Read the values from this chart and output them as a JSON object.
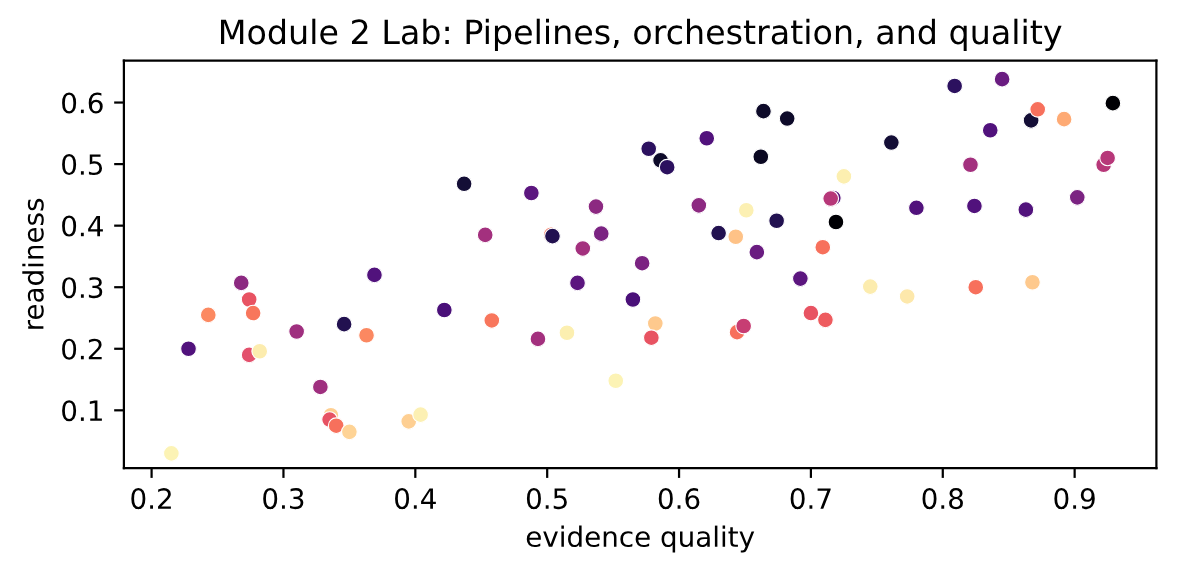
{
  "chart_data": {
    "type": "scatter",
    "title": "Module 2 Lab: Pipelines, orchestration, and quality",
    "xlabel": "evidence quality",
    "ylabel": "readiness",
    "xlim": [
      0.179,
      0.962
    ],
    "ylim": [
      0.006,
      0.668
    ],
    "xticks": [
      0.2,
      0.3,
      0.4,
      0.5,
      0.6,
      0.7,
      0.8,
      0.9
    ],
    "yticks": [
      0.1,
      0.2,
      0.3,
      0.4,
      0.5,
      0.6
    ],
    "grid": false,
    "marker": "circle",
    "x": [
      0.215,
      0.228,
      0.243,
      0.268,
      0.274,
      0.277,
      0.274,
      0.282,
      0.31,
      0.328,
      0.336,
      0.335,
      0.34,
      0.35,
      0.346,
      0.363,
      0.369,
      0.395,
      0.404,
      0.422,
      0.437,
      0.453,
      0.458,
      0.488,
      0.493,
      0.503,
      0.504,
      0.515,
      0.523,
      0.527,
      0.537,
      0.541,
      0.552,
      0.565,
      0.572,
      0.577,
      0.582,
      0.579,
      0.586,
      0.591,
      0.615,
      0.621,
      0.63,
      0.643,
      0.644,
      0.649,
      0.651,
      0.659,
      0.664,
      0.662,
      0.674,
      0.682,
      0.692,
      0.7,
      0.711,
      0.709,
      0.725,
      0.717,
      0.715,
      0.719,
      0.761,
      0.745,
      0.773,
      0.78,
      0.809,
      0.821,
      0.824,
      0.825,
      0.836,
      0.845,
      0.863,
      0.867,
      0.868,
      0.872,
      0.892,
      0.902,
      0.922,
      0.925,
      0.929
    ],
    "values": [
      0.03,
      0.2,
      0.255,
      0.307,
      0.28,
      0.258,
      0.19,
      0.196,
      0.228,
      0.138,
      0.092,
      0.085,
      0.075,
      0.065,
      0.24,
      0.222,
      0.32,
      0.082,
      0.093,
      0.263,
      0.468,
      0.385,
      0.246,
      0.453,
      0.216,
      0.385,
      0.383,
      0.226,
      0.307,
      0.363,
      0.431,
      0.387,
      0.148,
      0.28,
      0.339,
      0.525,
      0.241,
      0.218,
      0.506,
      0.495,
      0.433,
      0.542,
      0.388,
      0.382,
      0.227,
      0.237,
      0.425,
      0.357,
      0.586,
      0.512,
      0.408,
      0.574,
      0.314,
      0.258,
      0.247,
      0.365,
      0.48,
      0.445,
      0.444,
      0.406,
      0.535,
      0.301,
      0.285,
      0.429,
      0.627,
      0.499,
      0.432,
      0.3,
      0.555,
      0.638,
      0.426,
      0.571,
      0.308,
      0.589,
      0.573,
      0.446,
      0.499,
      0.51,
      0.599
    ],
    "colors": [
      "#fcf3b5",
      "#51127c",
      "#fc8961",
      "#8c2981",
      "#e85362",
      "#f8765c",
      "#e3506c",
      "#fcecae",
      "#9f2f7f",
      "#9f2f7f",
      "#fecf92",
      "#e75263",
      "#f7705c",
      "#fed395",
      "#221150",
      "#fb8861",
      "#51127c",
      "#fecf92",
      "#fcf0b3",
      "#4a1079",
      "#140e36",
      "#a3307e",
      "#f8765c",
      "#5c167f",
      "#a3307e",
      "#f8765c",
      "#221150",
      "#fcefb0",
      "#5c167f",
      "#a3307e",
      "#8c2981",
      "#7b2382",
      "#fcf3b5",
      "#4a1079",
      "#7b2382",
      "#2c115f",
      "#fec98d",
      "#e85362",
      "#0d0a29",
      "#2c115f",
      "#8c2981",
      "#51127c",
      "#221150",
      "#fec287",
      "#f7705c",
      "#c73d73",
      "#fcf0b3",
      "#6a1c81",
      "#0d0a29",
      "#0a0822",
      "#221150",
      "#0d0a29",
      "#5c167f",
      "#e85362",
      "#ee5b5e",
      "#f7705c",
      "#fcefb0",
      "#5c167f",
      "#b73779",
      "#000004",
      "#140e36",
      "#fcecae",
      "#fde8ab",
      "#51127c",
      "#2c115f",
      "#a3307e",
      "#51127c",
      "#f7705c",
      "#51127c",
      "#6a1c81",
      "#51127c",
      "#140e36",
      "#fec98d",
      "#f7705c",
      "#feaa74",
      "#7b2382",
      "#b73779",
      "#b73779",
      "#000004"
    ]
  }
}
